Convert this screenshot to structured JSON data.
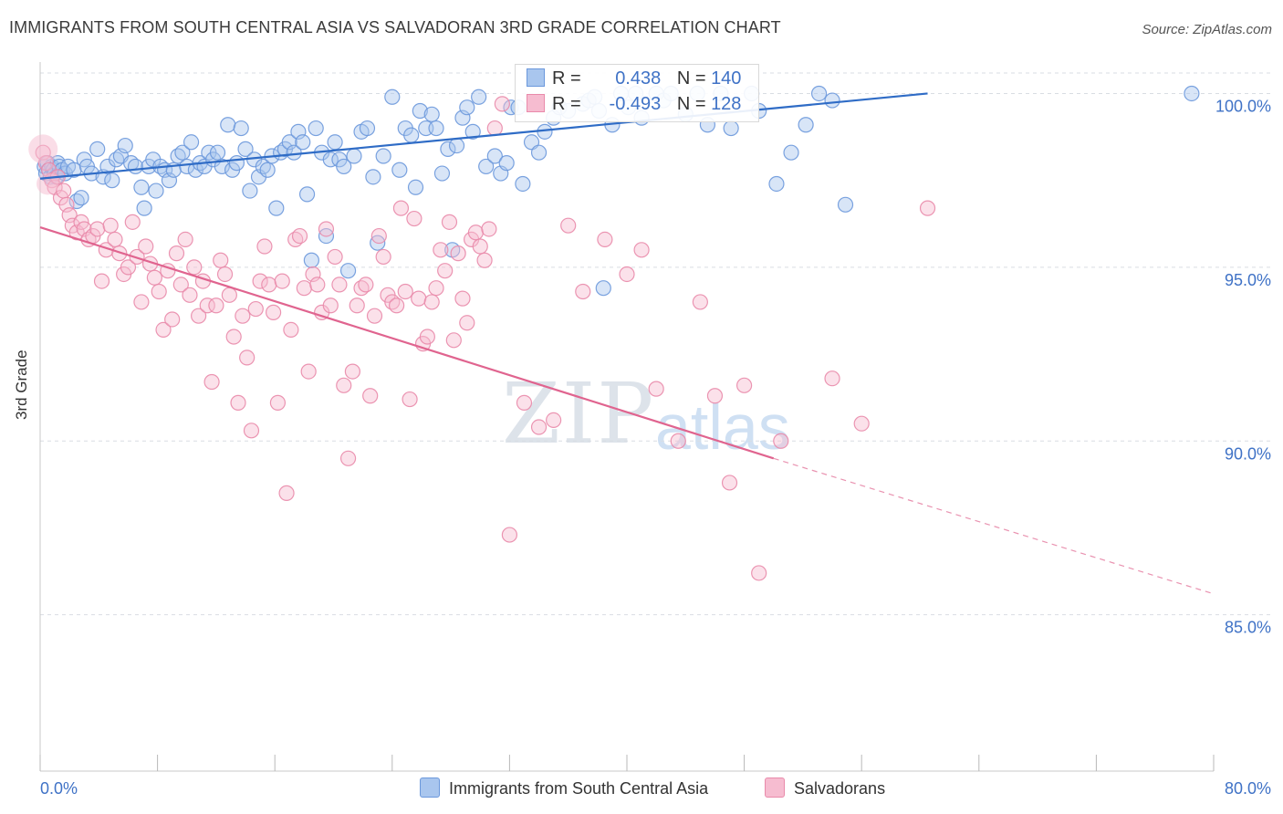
{
  "title": "IMMIGRANTS FROM SOUTH CENTRAL ASIA VS SALVADORAN 3RD GRADE CORRELATION CHART",
  "source": "Source: ZipAtlas.com",
  "watermark": {
    "zip": "ZIP",
    "atlas": "atlas"
  },
  "colors": {
    "blue_fill": "#a9c6ee",
    "blue_stroke": "#6b98dc",
    "blue_line": "#2f6cc6",
    "pink_fill": "#f6bcd0",
    "pink_stroke": "#e98aaa",
    "pink_line": "#e0648f",
    "grid": "#d9dde3",
    "tick_label": "#3f72c6"
  },
  "legend_top": {
    "rows": [
      {
        "r_label": "R =",
        "r_value": "0.438",
        "n_label": "N =",
        "n_value": "140"
      },
      {
        "r_label": "R =",
        "r_value": "-0.493",
        "n_label": "N =",
        "n_value": "128"
      }
    ]
  },
  "chart_data": {
    "type": "scatter",
    "title": "IMMIGRANTS FROM SOUTH CENTRAL ASIA VS SALVADORAN 3RD GRADE CORRELATION CHART",
    "xlabel": "",
    "ylabel": "3rd Grade",
    "xlim": [
      0,
      80
    ],
    "ylim": [
      80.5,
      100.8
    ],
    "x_tick_labels": [
      "0.0%",
      "80.0%"
    ],
    "y_ticks": [
      85,
      90,
      95,
      100
    ],
    "y_tick_labels": [
      "85.0%",
      "90.0%",
      "95.0%",
      "100.0%"
    ],
    "grid": true,
    "legend_position": "bottom",
    "series": [
      {
        "name": "Immigrants from South Central Asia",
        "color": "#a9c6ee",
        "trend": {
          "x0": 0,
          "y0": 97.55,
          "x1": 60.5,
          "y1": 100.0
        },
        "points": [
          [
            0.3,
            97.9
          ],
          [
            0.4,
            97.7
          ],
          [
            0.5,
            98.0
          ],
          [
            0.6,
            97.8
          ],
          [
            0.7,
            97.6
          ],
          [
            0.8,
            97.9
          ],
          [
            0.9,
            97.8
          ],
          [
            1.0,
            97.7
          ],
          [
            1.1,
            97.6
          ],
          [
            1.2,
            98.0
          ],
          [
            1.3,
            97.9
          ],
          [
            1.5,
            97.8
          ],
          [
            1.7,
            97.7
          ],
          [
            1.9,
            97.9
          ],
          [
            2.3,
            97.8
          ],
          [
            2.5,
            96.9
          ],
          [
            2.8,
            97.0
          ],
          [
            3.0,
            98.1
          ],
          [
            3.2,
            97.9
          ],
          [
            3.5,
            97.7
          ],
          [
            3.9,
            98.4
          ],
          [
            4.3,
            97.6
          ],
          [
            4.6,
            97.9
          ],
          [
            4.9,
            97.5
          ],
          [
            5.2,
            98.1
          ],
          [
            5.5,
            98.2
          ],
          [
            5.8,
            98.5
          ],
          [
            6.2,
            98.0
          ],
          [
            6.5,
            97.9
          ],
          [
            6.9,
            97.3
          ],
          [
            7.1,
            96.7
          ],
          [
            7.4,
            97.9
          ],
          [
            7.7,
            98.1
          ],
          [
            7.9,
            97.2
          ],
          [
            8.2,
            97.9
          ],
          [
            8.5,
            97.8
          ],
          [
            8.8,
            97.5
          ],
          [
            9.1,
            97.8
          ],
          [
            9.4,
            98.2
          ],
          [
            9.7,
            98.3
          ],
          [
            10.0,
            97.9
          ],
          [
            10.3,
            98.6
          ],
          [
            10.6,
            97.8
          ],
          [
            10.9,
            98.0
          ],
          [
            11.2,
            97.9
          ],
          [
            11.5,
            98.3
          ],
          [
            11.8,
            98.1
          ],
          [
            12.1,
            98.3
          ],
          [
            12.4,
            97.9
          ],
          [
            12.8,
            99.1
          ],
          [
            13.1,
            97.8
          ],
          [
            13.4,
            98.0
          ],
          [
            13.7,
            99.0
          ],
          [
            14.0,
            98.4
          ],
          [
            14.3,
            97.2
          ],
          [
            14.6,
            98.1
          ],
          [
            14.9,
            97.6
          ],
          [
            15.2,
            97.9
          ],
          [
            15.5,
            97.8
          ],
          [
            15.8,
            98.2
          ],
          [
            16.1,
            96.7
          ],
          [
            16.4,
            98.3
          ],
          [
            16.7,
            98.4
          ],
          [
            17.0,
            98.6
          ],
          [
            17.3,
            98.3
          ],
          [
            17.6,
            98.9
          ],
          [
            17.9,
            98.6
          ],
          [
            18.2,
            97.1
          ],
          [
            18.5,
            95.2
          ],
          [
            18.8,
            99.0
          ],
          [
            19.2,
            98.3
          ],
          [
            19.5,
            95.9
          ],
          [
            19.8,
            98.1
          ],
          [
            20.1,
            98.6
          ],
          [
            20.4,
            98.1
          ],
          [
            20.7,
            97.9
          ],
          [
            21.0,
            94.9
          ],
          [
            21.4,
            98.2
          ],
          [
            21.9,
            98.9
          ],
          [
            22.3,
            99.0
          ],
          [
            22.7,
            97.6
          ],
          [
            23.0,
            95.7
          ],
          [
            23.4,
            98.2
          ],
          [
            24.0,
            99.9
          ],
          [
            24.5,
            97.8
          ],
          [
            24.9,
            99.0
          ],
          [
            25.3,
            98.8
          ],
          [
            25.6,
            97.3
          ],
          [
            25.9,
            99.5
          ],
          [
            26.3,
            99.0
          ],
          [
            26.7,
            99.4
          ],
          [
            27.0,
            99.0
          ],
          [
            27.4,
            97.7
          ],
          [
            27.8,
            98.4
          ],
          [
            28.1,
            95.5
          ],
          [
            28.4,
            98.5
          ],
          [
            28.8,
            99.3
          ],
          [
            29.1,
            99.6
          ],
          [
            29.5,
            98.9
          ],
          [
            29.9,
            99.9
          ],
          [
            30.4,
            97.9
          ],
          [
            31.0,
            98.2
          ],
          [
            31.4,
            97.7
          ],
          [
            31.8,
            98.0
          ],
          [
            32.1,
            99.6
          ],
          [
            32.6,
            99.6
          ],
          [
            32.9,
            97.4
          ],
          [
            33.5,
            98.6
          ],
          [
            34.0,
            98.3
          ],
          [
            34.4,
            98.9
          ],
          [
            35.0,
            99.3
          ],
          [
            35.4,
            99.6
          ],
          [
            36.0,
            99.5
          ],
          [
            37.0,
            99.7
          ],
          [
            37.4,
            99.8
          ],
          [
            37.8,
            99.9
          ],
          [
            38.1,
            99.5
          ],
          [
            38.4,
            94.4
          ],
          [
            39.0,
            99.1
          ],
          [
            39.6,
            100.0
          ],
          [
            40.1,
            99.6
          ],
          [
            40.6,
            100.0
          ],
          [
            41.0,
            99.3
          ],
          [
            42.0,
            100.0
          ],
          [
            42.5,
            99.8
          ],
          [
            43.0,
            100.0
          ],
          [
            44.0,
            99.4
          ],
          [
            44.8,
            100.0
          ],
          [
            45.5,
            99.1
          ],
          [
            46.4,
            100.0
          ],
          [
            47.1,
            99.0
          ],
          [
            48.5,
            100.0
          ],
          [
            49.0,
            99.5
          ],
          [
            50.2,
            97.4
          ],
          [
            51.2,
            98.3
          ],
          [
            52.2,
            99.1
          ],
          [
            53.1,
            100.0
          ],
          [
            54.0,
            99.8
          ],
          [
            54.9,
            96.8
          ],
          [
            78.5,
            100.0
          ]
        ]
      },
      {
        "name": "Salvadorans",
        "color": "#f6bcd0",
        "trend": {
          "x0": 0,
          "y0": 96.15,
          "x1": 50.0,
          "y1": 89.5
        },
        "trend_dashed": {
          "x0": 50.0,
          "y0": 89.5,
          "x1": 80.0,
          "y1": 85.6
        },
        "points": [
          [
            0.2,
            98.3
          ],
          [
            0.4,
            98.0
          ],
          [
            0.6,
            97.8
          ],
          [
            0.8,
            97.5
          ],
          [
            1.0,
            97.3
          ],
          [
            1.2,
            97.6
          ],
          [
            1.4,
            97.0
          ],
          [
            1.6,
            97.2
          ],
          [
            1.8,
            96.8
          ],
          [
            2.0,
            96.5
          ],
          [
            2.2,
            96.2
          ],
          [
            2.5,
            96.0
          ],
          [
            2.8,
            96.3
          ],
          [
            3.0,
            96.1
          ],
          [
            3.3,
            95.8
          ],
          [
            3.6,
            95.9
          ],
          [
            3.9,
            96.1
          ],
          [
            4.2,
            94.6
          ],
          [
            4.5,
            95.5
          ],
          [
            4.8,
            96.2
          ],
          [
            5.1,
            95.8
          ],
          [
            5.4,
            95.4
          ],
          [
            5.7,
            94.8
          ],
          [
            6.0,
            95.0
          ],
          [
            6.3,
            96.3
          ],
          [
            6.6,
            95.3
          ],
          [
            6.9,
            94.0
          ],
          [
            7.2,
            95.6
          ],
          [
            7.5,
            95.1
          ],
          [
            7.8,
            94.7
          ],
          [
            8.1,
            94.3
          ],
          [
            8.4,
            93.2
          ],
          [
            8.7,
            94.9
          ],
          [
            9.0,
            93.5
          ],
          [
            9.3,
            95.4
          ],
          [
            9.6,
            94.5
          ],
          [
            9.9,
            95.8
          ],
          [
            10.2,
            94.2
          ],
          [
            10.5,
            95.0
          ],
          [
            10.8,
            93.6
          ],
          [
            11.1,
            94.6
          ],
          [
            11.4,
            93.9
          ],
          [
            11.7,
            91.7
          ],
          [
            12.0,
            93.9
          ],
          [
            12.3,
            95.2
          ],
          [
            12.6,
            94.8
          ],
          [
            12.9,
            94.2
          ],
          [
            13.2,
            93.0
          ],
          [
            13.5,
            91.1
          ],
          [
            13.8,
            93.6
          ],
          [
            14.1,
            92.4
          ],
          [
            14.4,
            90.3
          ],
          [
            14.7,
            93.8
          ],
          [
            15.0,
            94.6
          ],
          [
            15.3,
            95.6
          ],
          [
            15.6,
            94.5
          ],
          [
            15.9,
            93.7
          ],
          [
            16.2,
            91.1
          ],
          [
            16.5,
            94.6
          ],
          [
            16.8,
            88.5
          ],
          [
            17.1,
            93.2
          ],
          [
            17.4,
            95.8
          ],
          [
            17.7,
            95.9
          ],
          [
            18.0,
            94.4
          ],
          [
            18.3,
            92.0
          ],
          [
            18.6,
            94.8
          ],
          [
            18.9,
            94.5
          ],
          [
            19.2,
            93.7
          ],
          [
            19.5,
            96.1
          ],
          [
            19.8,
            93.9
          ],
          [
            20.1,
            95.3
          ],
          [
            20.4,
            94.5
          ],
          [
            20.7,
            91.6
          ],
          [
            21.0,
            89.5
          ],
          [
            21.3,
            92.0
          ],
          [
            21.6,
            93.9
          ],
          [
            21.9,
            94.4
          ],
          [
            22.2,
            94.5
          ],
          [
            22.5,
            91.3
          ],
          [
            22.8,
            93.6
          ],
          [
            23.1,
            95.9
          ],
          [
            23.4,
            95.3
          ],
          [
            23.7,
            94.2
          ],
          [
            24.0,
            94.0
          ],
          [
            24.3,
            93.9
          ],
          [
            24.6,
            96.7
          ],
          [
            24.9,
            94.3
          ],
          [
            25.2,
            91.2
          ],
          [
            25.5,
            96.4
          ],
          [
            25.8,
            94.1
          ],
          [
            26.1,
            92.8
          ],
          [
            26.4,
            93.0
          ],
          [
            26.7,
            94.0
          ],
          [
            27.0,
            94.4
          ],
          [
            27.3,
            95.5
          ],
          [
            27.6,
            94.9
          ],
          [
            27.9,
            96.3
          ],
          [
            28.2,
            92.9
          ],
          [
            28.5,
            95.4
          ],
          [
            28.8,
            94.1
          ],
          [
            29.1,
            93.4
          ],
          [
            29.4,
            95.8
          ],
          [
            29.7,
            96.0
          ],
          [
            30.0,
            95.6
          ],
          [
            30.3,
            95.2
          ],
          [
            30.6,
            96.1
          ],
          [
            31.0,
            99.0
          ],
          [
            31.5,
            99.7
          ],
          [
            32.0,
            87.3
          ],
          [
            33.0,
            91.1
          ],
          [
            34.0,
            90.4
          ],
          [
            35.0,
            90.6
          ],
          [
            36.0,
            96.2
          ],
          [
            37.0,
            94.3
          ],
          [
            38.5,
            95.8
          ],
          [
            40.0,
            94.8
          ],
          [
            41.0,
            95.5
          ],
          [
            42.0,
            91.5
          ],
          [
            43.5,
            90.0
          ],
          [
            45.0,
            94.0
          ],
          [
            46.0,
            91.3
          ],
          [
            47.0,
            88.8
          ],
          [
            48.0,
            91.6
          ],
          [
            49.0,
            86.2
          ],
          [
            50.5,
            90.0
          ],
          [
            54.0,
            91.8
          ],
          [
            56.0,
            90.5
          ],
          [
            60.5,
            96.7
          ]
        ]
      }
    ]
  },
  "legend_bottom": [
    {
      "label": "Immigrants from South Central Asia"
    },
    {
      "label": "Salvadorans"
    }
  ]
}
